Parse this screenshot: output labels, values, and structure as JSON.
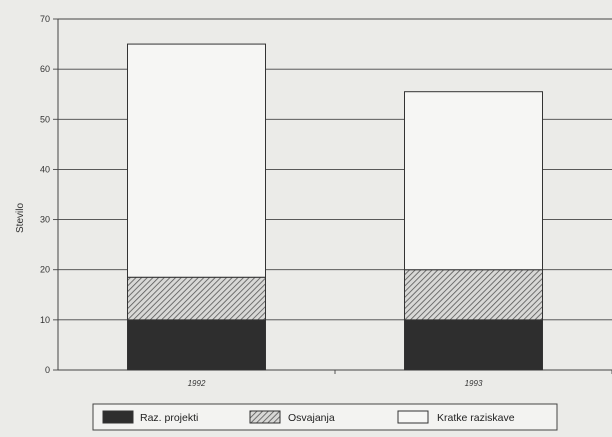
{
  "chart_data": {
    "type": "bar",
    "stacked": true,
    "categories": [
      "1992",
      "1993"
    ],
    "series": [
      {
        "name": "Raz. projekti",
        "values": [
          10,
          10
        ],
        "color": "#2e2e2e",
        "pattern": "solid"
      },
      {
        "name": "Osvajanja",
        "values": [
          8.5,
          10
        ],
        "color": "#8c8c8c",
        "pattern": "hatch"
      },
      {
        "name": "Kratke raziskave",
        "values": [
          46.5,
          35.5
        ],
        "color": "#f6f6f4",
        "pattern": "solid"
      }
    ],
    "title": "",
    "xlabel": "",
    "ylabel": "Stevilo",
    "ylim": [
      0,
      70
    ],
    "yticks": [
      0,
      10,
      20,
      30,
      40,
      50,
      60,
      70
    ],
    "grid": true,
    "legend_position": "bottom"
  }
}
